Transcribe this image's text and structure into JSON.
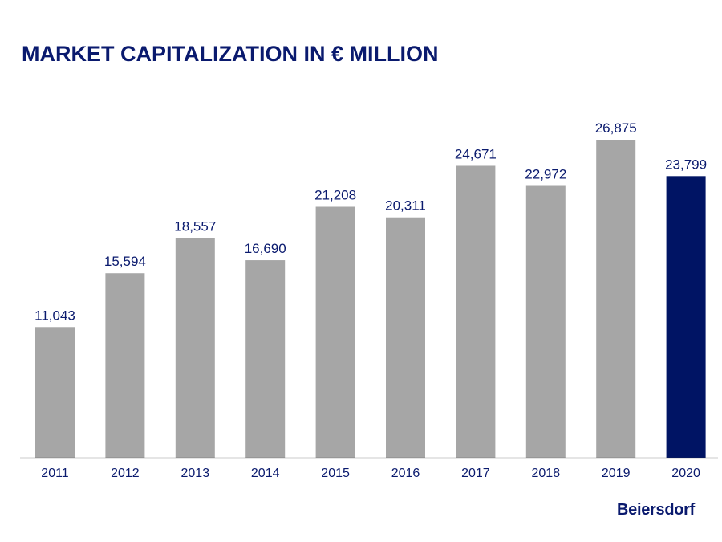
{
  "chart_data": {
    "type": "bar",
    "title": "MARKET CAPITALIZATION IN € MILLION",
    "categories": [
      "2011",
      "2012",
      "2013",
      "2014",
      "2015",
      "2016",
      "2017",
      "2018",
      "2019",
      "2020"
    ],
    "values": [
      11043,
      15594,
      18557,
      16690,
      21208,
      20311,
      24671,
      22972,
      26875,
      23799
    ],
    "value_labels": [
      "11,043",
      "15,594",
      "18,557",
      "16,690",
      "21,208",
      "20,311",
      "24,671",
      "22,972",
      "26,875",
      "23,799"
    ],
    "xlabel": "",
    "ylabel": "",
    "ylim": [
      0,
      26875
    ],
    "grid": false,
    "legend": "none",
    "colors": {
      "default": "#a6a6a6",
      "highlight": "#001464",
      "text": "#0a1a6e",
      "axis": "#333333"
    },
    "highlight_category": "2020"
  },
  "logo": "Beiersdorf"
}
